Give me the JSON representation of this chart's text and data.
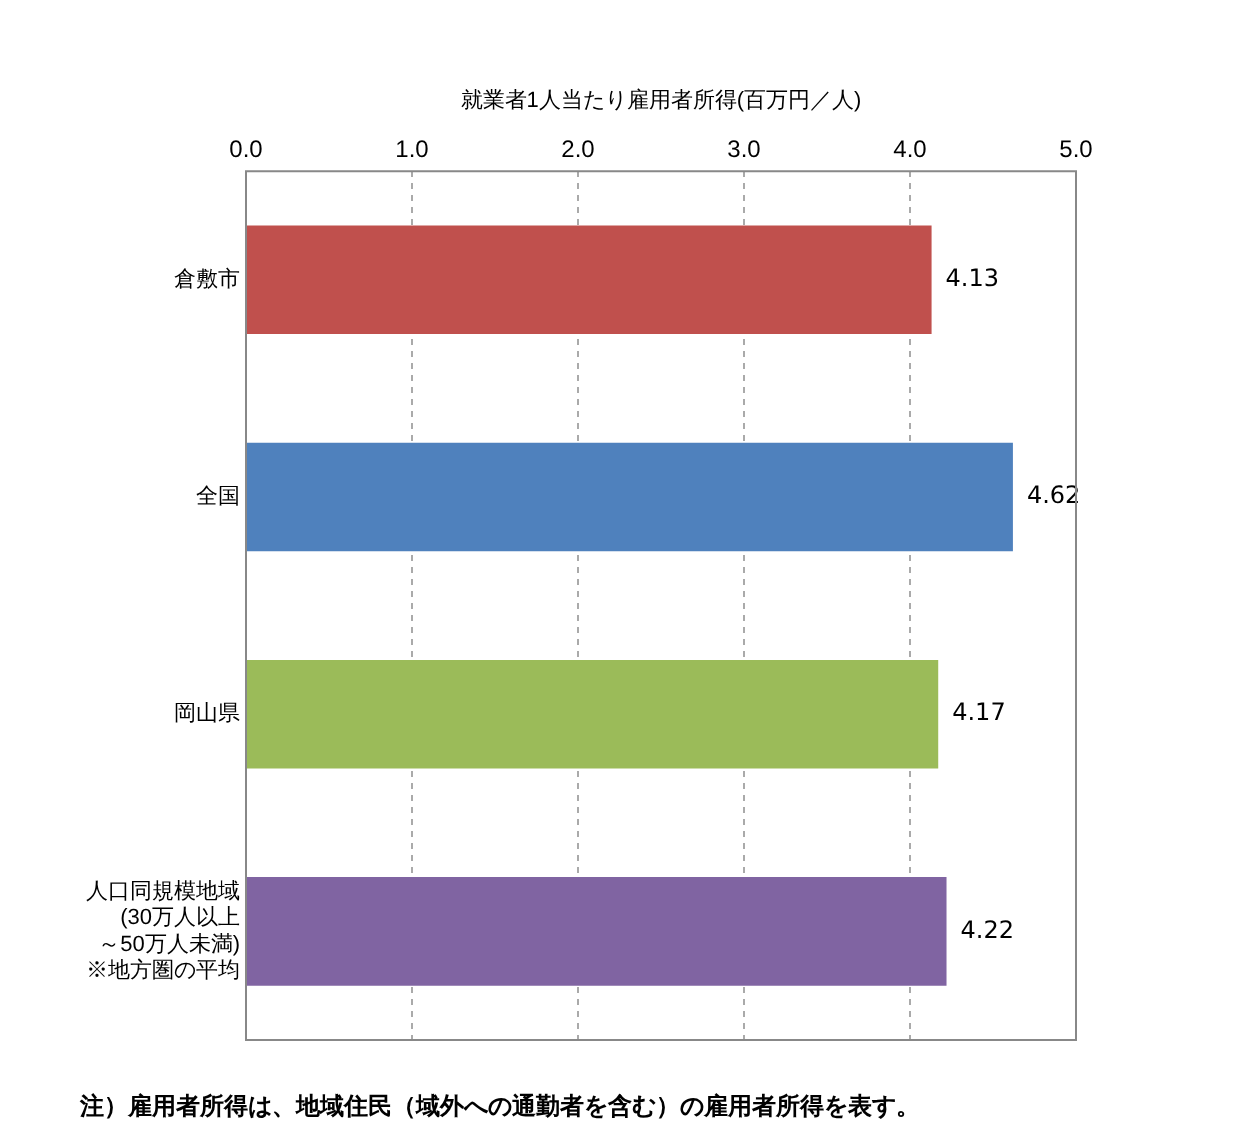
{
  "chart_data": {
    "type": "bar",
    "orientation": "horizontal",
    "xlabel": "就業者1人当たり雇用者所得(百万円／人)",
    "categories": [
      "倉敷市",
      "全国",
      "岡山県",
      "人口同規模地域\n(30万人以上～50万人未満)\n※地方圏の平均"
    ],
    "values": [
      4.13,
      4.62,
      4.17,
      4.22
    ],
    "colors": [
      "#c0504d",
      "#4f81bd",
      "#9bbb59",
      "#8064a2"
    ],
    "xlim": [
      0,
      5
    ],
    "xticks": [
      {
        "value": 0,
        "label": "0.0"
      },
      {
        "value": 1,
        "label": "1.0"
      },
      {
        "value": 2,
        "label": "2.0"
      },
      {
        "value": 3,
        "label": "3.0"
      },
      {
        "value": 4,
        "label": "4.0"
      },
      {
        "value": 5,
        "label": "5.0"
      }
    ],
    "grid": "x",
    "data_labels": true,
    "annotations": [
      "注）雇用者所得は、地域住民（域外への通勤者を含む）の雇用者所得を表す。"
    ]
  }
}
